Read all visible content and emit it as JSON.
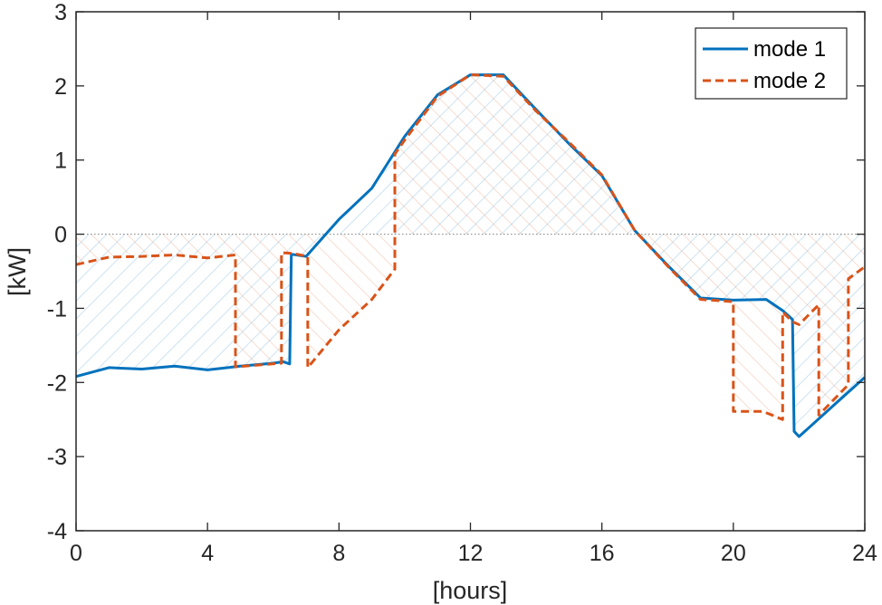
{
  "chart_data": {
    "type": "line",
    "xlabel": "[hours]",
    "ylabel": "[kW]",
    "xlim": [
      0,
      24
    ],
    "ylim": [
      -4,
      3
    ],
    "xticks": [
      0,
      4,
      8,
      12,
      16,
      20,
      24
    ],
    "yticks": [
      -4,
      -3,
      -2,
      -1,
      0,
      1,
      2,
      3
    ],
    "xtick_labels": [
      "0",
      "4",
      "8",
      "12",
      "16",
      "20",
      "24"
    ],
    "ytick_labels": [
      "-4",
      "-3",
      "-2",
      "-1",
      "0",
      "1",
      "2",
      "3"
    ],
    "grid": false,
    "zero_line": true,
    "legend_position": "top-right",
    "hatched_fill_between_series_and_zero": true,
    "series": [
      {
        "name": "mode 1",
        "color": "#0072BD",
        "style": "solid",
        "x": [
          0,
          1,
          2,
          3,
          4,
          5,
          6,
          6.3,
          6.5,
          6.55,
          7,
          8,
          9,
          10,
          11,
          12,
          13,
          14,
          15,
          16,
          17,
          18,
          19,
          20,
          21,
          21.5,
          21.8,
          21.85,
          22,
          23,
          24
        ],
        "y": [
          -1.92,
          -1.8,
          -1.82,
          -1.78,
          -1.83,
          -1.78,
          -1.74,
          -1.72,
          -1.75,
          -0.27,
          -0.3,
          0.2,
          0.62,
          1.32,
          1.88,
          2.15,
          2.15,
          1.68,
          1.22,
          0.79,
          0.05,
          -0.42,
          -0.86,
          -0.89,
          -0.88,
          -1.03,
          -1.15,
          -2.66,
          -2.73,
          -2.33,
          -1.93
        ]
      },
      {
        "name": "mode 2",
        "color": "#D95319",
        "style": "dashed",
        "x": [
          0,
          1,
          2,
          3,
          4,
          4.85,
          4.85,
          6.25,
          6.25,
          6.6,
          7.05,
          7.05,
          8,
          9,
          9.7,
          9.7,
          10,
          11,
          12,
          13,
          14,
          15,
          16,
          17,
          18,
          19,
          20,
          20,
          20.9,
          21.5,
          21.5,
          21.8,
          22,
          22.6,
          22.6,
          23.5,
          23.5,
          24
        ],
        "y": [
          -0.41,
          -0.31,
          -0.3,
          -0.28,
          -0.32,
          -0.28,
          -1.79,
          -1.74,
          -0.25,
          -0.26,
          -0.3,
          -1.8,
          -1.29,
          -0.88,
          -0.47,
          1.08,
          1.27,
          1.86,
          2.15,
          2.13,
          1.66,
          1.24,
          0.8,
          0.05,
          -0.43,
          -0.88,
          -0.91,
          -2.39,
          -2.39,
          -2.5,
          -1.05,
          -1.18,
          -1.22,
          -0.95,
          -2.44,
          -2.03,
          -0.6,
          -0.44
        ]
      }
    ]
  }
}
